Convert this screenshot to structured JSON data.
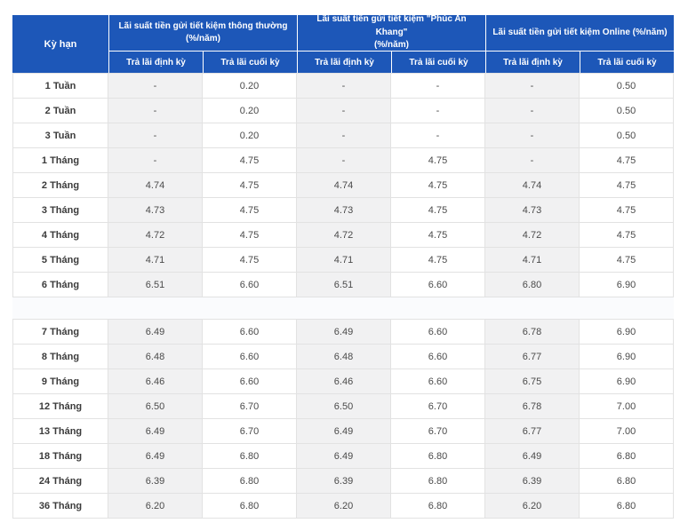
{
  "colors": {
    "header_bg": "#1d57b8",
    "header_text": "#ffffff",
    "shaded_column_bg": "#f1f1f2",
    "border": "#e2e2e2",
    "term_text": "#3b3b3b",
    "value_text": "#4a4a4a"
  },
  "table": {
    "term_header": "Kỳ hạn",
    "groups": [
      {
        "line1": "Lãi suất tiền gửi tiết kiệm thông thường",
        "line2": "(%/năm)"
      },
      {
        "line1": "Lãi suất tiền gửi tiết kiệm \"Phúc An Khang\"",
        "line2": "(%/năm)"
      },
      {
        "line1": "Lãi suất tiền gửi tiết kiệm Online (%/năm)",
        "line2": ""
      }
    ],
    "subheaders": {
      "periodic": "Trả lãi định kỳ",
      "end": "Trả lãi cuối kỳ"
    },
    "sections": [
      {
        "rows": [
          {
            "term": "1 Tuần",
            "values": [
              "-",
              "0.20",
              "-",
              "-",
              "-",
              "0.50"
            ]
          },
          {
            "term": "2 Tuần",
            "values": [
              "-",
              "0.20",
              "-",
              "-",
              "-",
              "0.50"
            ]
          },
          {
            "term": "3 Tuần",
            "values": [
              "-",
              "0.20",
              "-",
              "-",
              "-",
              "0.50"
            ]
          },
          {
            "term": "1 Tháng",
            "values": [
              "-",
              "4.75",
              "-",
              "4.75",
              "-",
              "4.75"
            ]
          },
          {
            "term": "2 Tháng",
            "values": [
              "4.74",
              "4.75",
              "4.74",
              "4.75",
              "4.74",
              "4.75"
            ]
          },
          {
            "term": "3 Tháng",
            "values": [
              "4.73",
              "4.75",
              "4.73",
              "4.75",
              "4.73",
              "4.75"
            ]
          },
          {
            "term": "4 Tháng",
            "values": [
              "4.72",
              "4.75",
              "4.72",
              "4.75",
              "4.72",
              "4.75"
            ]
          },
          {
            "term": "5 Tháng",
            "values": [
              "4.71",
              "4.75",
              "4.71",
              "4.75",
              "4.71",
              "4.75"
            ]
          },
          {
            "term": "6 Tháng",
            "values": [
              "6.51",
              "6.60",
              "6.51",
              "6.60",
              "6.80",
              "6.90"
            ]
          }
        ]
      },
      {
        "rows": [
          {
            "term": "7 Tháng",
            "values": [
              "6.49",
              "6.60",
              "6.49",
              "6.60",
              "6.78",
              "6.90"
            ]
          },
          {
            "term": "8 Tháng",
            "values": [
              "6.48",
              "6.60",
              "6.48",
              "6.60",
              "6.77",
              "6.90"
            ]
          },
          {
            "term": "9 Tháng",
            "values": [
              "6.46",
              "6.60",
              "6.46",
              "6.60",
              "6.75",
              "6.90"
            ]
          },
          {
            "term": "12 Tháng",
            "values": [
              "6.50",
              "6.70",
              "6.50",
              "6.70",
              "6.78",
              "7.00"
            ]
          },
          {
            "term": "13 Tháng",
            "values": [
              "6.49",
              "6.70",
              "6.49",
              "6.70",
              "6.77",
              "7.00"
            ]
          },
          {
            "term": "18 Tháng",
            "values": [
              "6.49",
              "6.80",
              "6.49",
              "6.80",
              "6.49",
              "6.80"
            ]
          },
          {
            "term": "24 Tháng",
            "values": [
              "6.39",
              "6.80",
              "6.39",
              "6.80",
              "6.39",
              "6.80"
            ]
          },
          {
            "term": "36 Tháng",
            "values": [
              "6.20",
              "6.80",
              "6.20",
              "6.80",
              "6.20",
              "6.80"
            ]
          }
        ]
      }
    ]
  }
}
